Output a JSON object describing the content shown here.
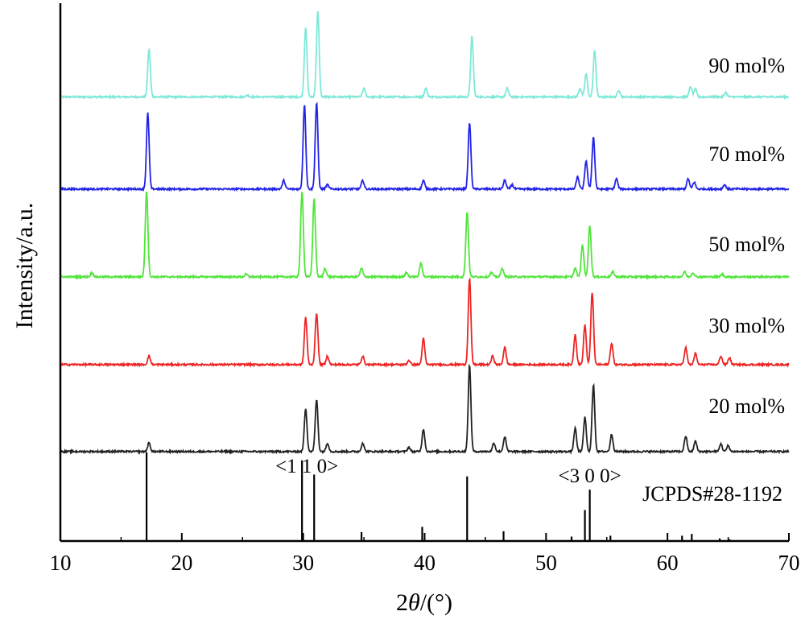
{
  "chart_data": {
    "type": "line",
    "title": "",
    "xlabel_prefix": "2",
    "xlabel_symbol": "θ",
    "xlabel_suffix": "/(°)",
    "ylabel": "Intensity/a.u.",
    "xlim": [
      10,
      70
    ],
    "xticks": [
      "10",
      "20",
      "30",
      "40",
      "50",
      "60",
      "70"
    ],
    "y_ticks_shown": false,
    "grid": false,
    "legend": "none",
    "series": [
      {
        "name": "90 mol%",
        "color": "#7ee8d8",
        "baseline": 0.09,
        "peaks": [
          [
            17.3,
            0.55
          ],
          [
            25.4,
            0.02
          ],
          [
            30.2,
            0.81
          ],
          [
            31.2,
            1.0
          ],
          [
            35.0,
            0.1
          ],
          [
            40.1,
            0.1
          ],
          [
            43.9,
            0.7
          ],
          [
            46.8,
            0.1
          ],
          [
            52.8,
            0.1
          ],
          [
            53.3,
            0.27
          ],
          [
            54.0,
            0.54
          ],
          [
            56.0,
            0.08
          ],
          [
            61.9,
            0.12
          ],
          [
            62.3,
            0.09
          ],
          [
            64.8,
            0.05
          ]
        ]
      },
      {
        "name": "70 mol%",
        "color": "#2323e6",
        "baseline": 0.03,
        "peaks": [
          [
            17.2,
            0.88
          ],
          [
            28.4,
            0.1
          ],
          [
            30.1,
            0.98
          ],
          [
            31.1,
            1.0
          ],
          [
            32.0,
            0.05
          ],
          [
            34.9,
            0.1
          ],
          [
            39.9,
            0.1
          ],
          [
            43.7,
            0.77
          ],
          [
            46.6,
            0.1
          ],
          [
            47.2,
            0.05
          ],
          [
            52.6,
            0.14
          ],
          [
            53.3,
            0.33
          ],
          [
            53.9,
            0.6
          ],
          [
            55.8,
            0.12
          ],
          [
            61.7,
            0.12
          ],
          [
            62.2,
            0.08
          ],
          [
            64.7,
            0.05
          ]
        ]
      },
      {
        "name": "50 mol%",
        "color": "#52e43c",
        "baseline": 0.02,
        "peaks": [
          [
            12.6,
            0.05
          ],
          [
            17.1,
            1.0
          ],
          [
            25.3,
            0.03
          ],
          [
            29.9,
            1.0
          ],
          [
            30.9,
            0.91
          ],
          [
            31.8,
            0.1
          ],
          [
            34.8,
            0.1
          ],
          [
            38.5,
            0.05
          ],
          [
            39.7,
            0.16
          ],
          [
            43.5,
            0.75
          ],
          [
            45.5,
            0.05
          ],
          [
            46.4,
            0.1
          ],
          [
            52.4,
            0.1
          ],
          [
            53.0,
            0.37
          ],
          [
            53.6,
            0.6
          ],
          [
            55.5,
            0.06
          ],
          [
            61.4,
            0.06
          ],
          [
            62.1,
            0.05
          ],
          [
            64.5,
            0.03
          ]
        ]
      },
      {
        "name": "30 mol%",
        "color": "#ee2424",
        "baseline": 0.02,
        "peaks": [
          [
            17.3,
            0.1
          ],
          [
            30.2,
            0.55
          ],
          [
            31.1,
            0.6
          ],
          [
            32.0,
            0.1
          ],
          [
            34.9,
            0.1
          ],
          [
            38.7,
            0.05
          ],
          [
            39.9,
            0.3
          ],
          [
            43.7,
            1.0
          ],
          [
            45.6,
            0.1
          ],
          [
            46.6,
            0.2
          ],
          [
            52.4,
            0.35
          ],
          [
            53.2,
            0.46
          ],
          [
            53.8,
            0.84
          ],
          [
            55.4,
            0.25
          ],
          [
            61.5,
            0.2
          ],
          [
            62.3,
            0.13
          ],
          [
            64.4,
            0.1
          ],
          [
            65.1,
            0.08
          ]
        ]
      },
      {
        "name": "20 mol%",
        "color": "#222222",
        "baseline": 0.02,
        "peaks": [
          [
            17.3,
            0.1
          ],
          [
            30.2,
            0.5
          ],
          [
            31.1,
            0.6
          ],
          [
            32.0,
            0.1
          ],
          [
            34.9,
            0.1
          ],
          [
            38.7,
            0.05
          ],
          [
            39.9,
            0.26
          ],
          [
            43.7,
            1.0
          ],
          [
            45.7,
            0.1
          ],
          [
            46.6,
            0.17
          ],
          [
            52.4,
            0.27
          ],
          [
            53.2,
            0.4
          ],
          [
            53.9,
            0.77
          ],
          [
            55.4,
            0.2
          ],
          [
            61.5,
            0.18
          ],
          [
            62.3,
            0.12
          ],
          [
            64.4,
            0.09
          ],
          [
            65.0,
            0.07
          ]
        ]
      }
    ],
    "reference": {
      "name": "JCPDS#28-1192",
      "lines": [
        [
          17.1,
          1.0
        ],
        [
          29.9,
          0.91
        ],
        [
          30.9,
          0.75
        ],
        [
          34.8,
          0.1
        ],
        [
          39.8,
          0.16
        ],
        [
          43.5,
          0.73
        ],
        [
          46.5,
          0.11
        ],
        [
          52.1,
          0.05
        ],
        [
          53.2,
          0.35
        ],
        [
          53.6,
          0.58
        ],
        [
          55.3,
          0.06
        ],
        [
          61.2,
          0.06
        ],
        [
          62.0,
          0.08
        ],
        [
          64.3,
          0.03
        ],
        [
          65.1,
          0.02
        ]
      ]
    },
    "annotations": [
      {
        "text": "<1 1 0>",
        "x": 30.3
      },
      {
        "text": "<3 0 0>",
        "x": 53.6
      }
    ]
  }
}
